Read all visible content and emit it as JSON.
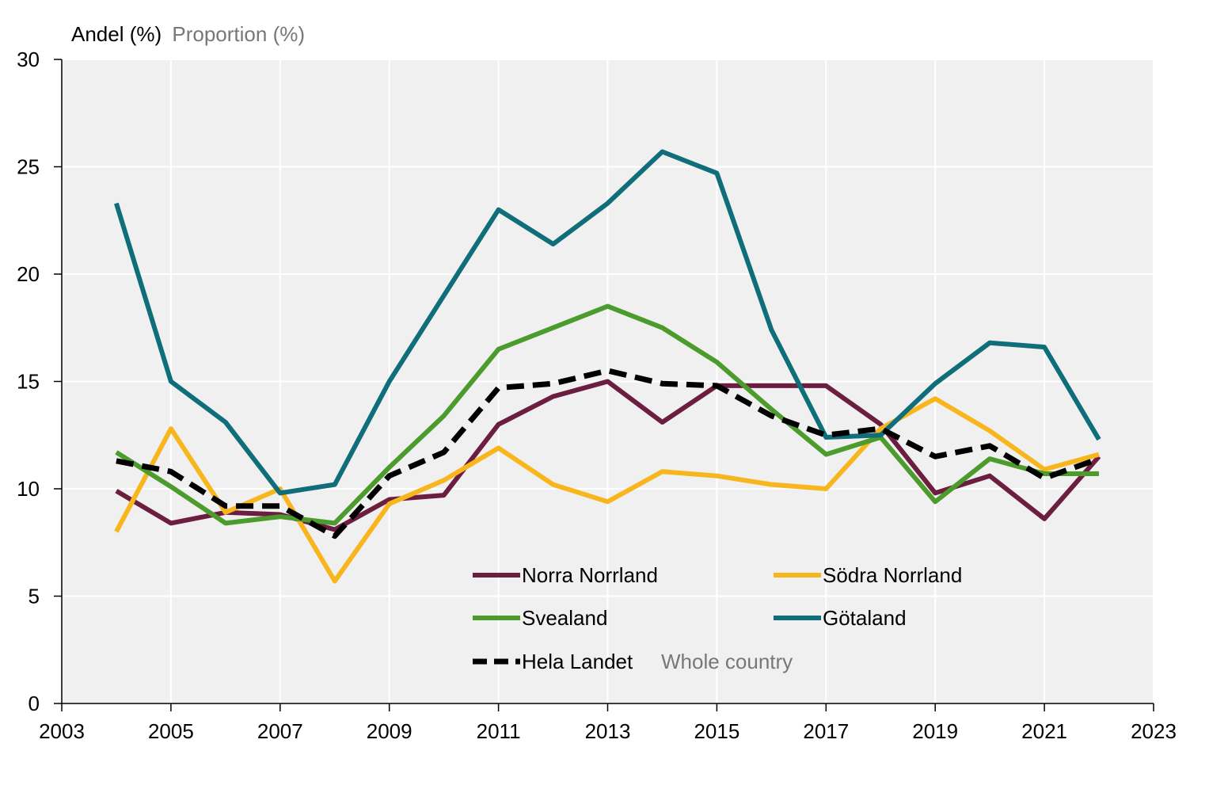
{
  "chart_data": {
    "type": "line",
    "ylabel": "Andel (%)",
    "ylabel_en": "Proportion (%)",
    "xlim": [
      2003,
      2023
    ],
    "ylim": [
      0,
      30
    ],
    "x_ticks": [
      "2003",
      "2005",
      "2007",
      "2009",
      "2011",
      "2013",
      "2015",
      "2017",
      "2019",
      "2021",
      "2023"
    ],
    "y_ticks": [
      "0",
      "5",
      "10",
      "15",
      "20",
      "25",
      "30"
    ],
    "grid": true,
    "legend_position": "bottom-center",
    "x": [
      2004,
      2005,
      2006,
      2007,
      2008,
      2009,
      2010,
      2011,
      2012,
      2013,
      2014,
      2015,
      2016,
      2017,
      2018,
      2019,
      2020,
      2021,
      2022
    ],
    "series": [
      {
        "name": "Norra Norrland",
        "color": "#6b1e3f",
        "dash": false,
        "values": [
          9.9,
          8.4,
          8.9,
          8.8,
          8.1,
          9.5,
          9.7,
          13.0,
          14.3,
          15.0,
          13.1,
          14.8,
          14.8,
          14.8,
          13.0,
          9.8,
          10.6,
          8.6,
          11.5
        ]
      },
      {
        "name": "Södra Norrland",
        "color": "#f8b61e",
        "dash": false,
        "values": [
          8.0,
          12.8,
          8.9,
          10.0,
          5.7,
          9.3,
          10.4,
          11.9,
          10.2,
          9.4,
          10.8,
          10.6,
          10.2,
          10.0,
          12.8,
          14.2,
          12.7,
          10.9,
          11.6
        ]
      },
      {
        "name": "Svealand",
        "color": "#4b9b2d",
        "dash": false,
        "values": [
          11.7,
          10.1,
          8.4,
          8.7,
          8.4,
          11.0,
          13.4,
          16.5,
          17.5,
          18.5,
          17.5,
          15.9,
          13.7,
          11.6,
          12.4,
          9.4,
          11.4,
          10.7,
          10.7
        ]
      },
      {
        "name": "Götaland",
        "color": "#0f6e7a",
        "dash": false,
        "values": [
          23.3,
          15.0,
          13.1,
          9.8,
          10.2,
          15.0,
          19.0,
          23.0,
          21.4,
          23.3,
          25.7,
          24.7,
          17.4,
          12.4,
          12.5,
          14.9,
          16.8,
          16.6,
          12.3
        ]
      },
      {
        "name": "Hela Landet",
        "name_en": "Whole country",
        "color": "#000000",
        "dash": true,
        "values": [
          11.3,
          10.8,
          9.2,
          9.2,
          7.8,
          10.6,
          11.7,
          14.7,
          14.9,
          15.5,
          14.9,
          14.8,
          13.4,
          12.5,
          12.8,
          11.5,
          12.0,
          10.5,
          11.4
        ]
      }
    ]
  },
  "colors": {
    "plot_background": "#f0f0f0",
    "gridline": "#ffffff",
    "axis": "#000000",
    "secondary_text": "#777777"
  }
}
